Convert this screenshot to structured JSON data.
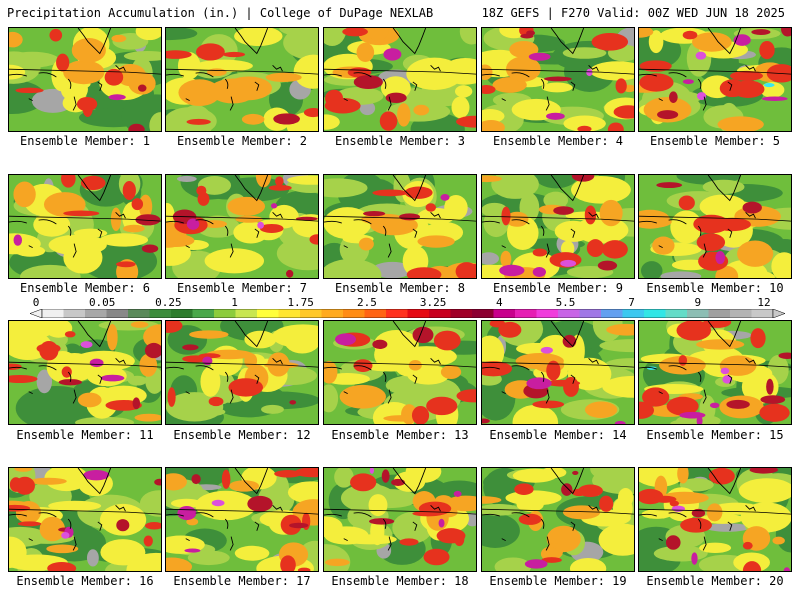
{
  "header": {
    "left": "Precipitation Accumulation (in.) | College of DuPage NEXLAB",
    "right": "18Z GEFS | F270 Valid: 00Z WED JUN 18 2025"
  },
  "member_prefix": "Ensemble Member: ",
  "members": [
    "1",
    "2",
    "3",
    "4",
    "5",
    "6",
    "7",
    "8",
    "9",
    "10",
    "11",
    "12",
    "13",
    "14",
    "15",
    "16",
    "17",
    "18",
    "19",
    "20"
  ],
  "colorbar": {
    "labels": [
      "0",
      "0.05",
      "0.25",
      "1",
      "1.75",
      "2.5",
      "3.25",
      "4",
      "5.5",
      "7",
      "9",
      "12"
    ],
    "colors": [
      "#f0f0f0",
      "#c8c8c8",
      "#a8a8a8",
      "#888888",
      "#5a8a5a",
      "#3c8c3c",
      "#2e7d2e",
      "#4aa84a",
      "#8ccc3c",
      "#c8e650",
      "#ffff3c",
      "#ffe632",
      "#ffc828",
      "#ffaa1e",
      "#ff8c14",
      "#ff6414",
      "#ff321e",
      "#e60a14",
      "#c8001e",
      "#a00028",
      "#8c0032",
      "#c8008c",
      "#e61eb4",
      "#f03cdc",
      "#c864e6",
      "#a078e6",
      "#64a0f0",
      "#3cc8f0",
      "#32e6e6",
      "#64dcc8",
      "#8cbeb4",
      "#a0a0a0",
      "#b4b4b4",
      "#c8c8c8"
    ]
  },
  "palette": {
    "gray": "#a6a6a6",
    "dkgreen": "#3e8f3a",
    "green": "#6fbe3c",
    "ltgreen": "#a6d24a",
    "yellow": "#f4ee3c",
    "orange": "#f6a523",
    "red": "#e6321e",
    "dkred": "#b4142a",
    "magenta": "#c81ea0",
    "violet": "#dc50dc",
    "cyan": "#3ce6f0"
  },
  "intensity": [
    2,
    1,
    2,
    3,
    4,
    2,
    3,
    2,
    3,
    2,
    3,
    2,
    2,
    3,
    4,
    3,
    3,
    3,
    2,
    3
  ]
}
